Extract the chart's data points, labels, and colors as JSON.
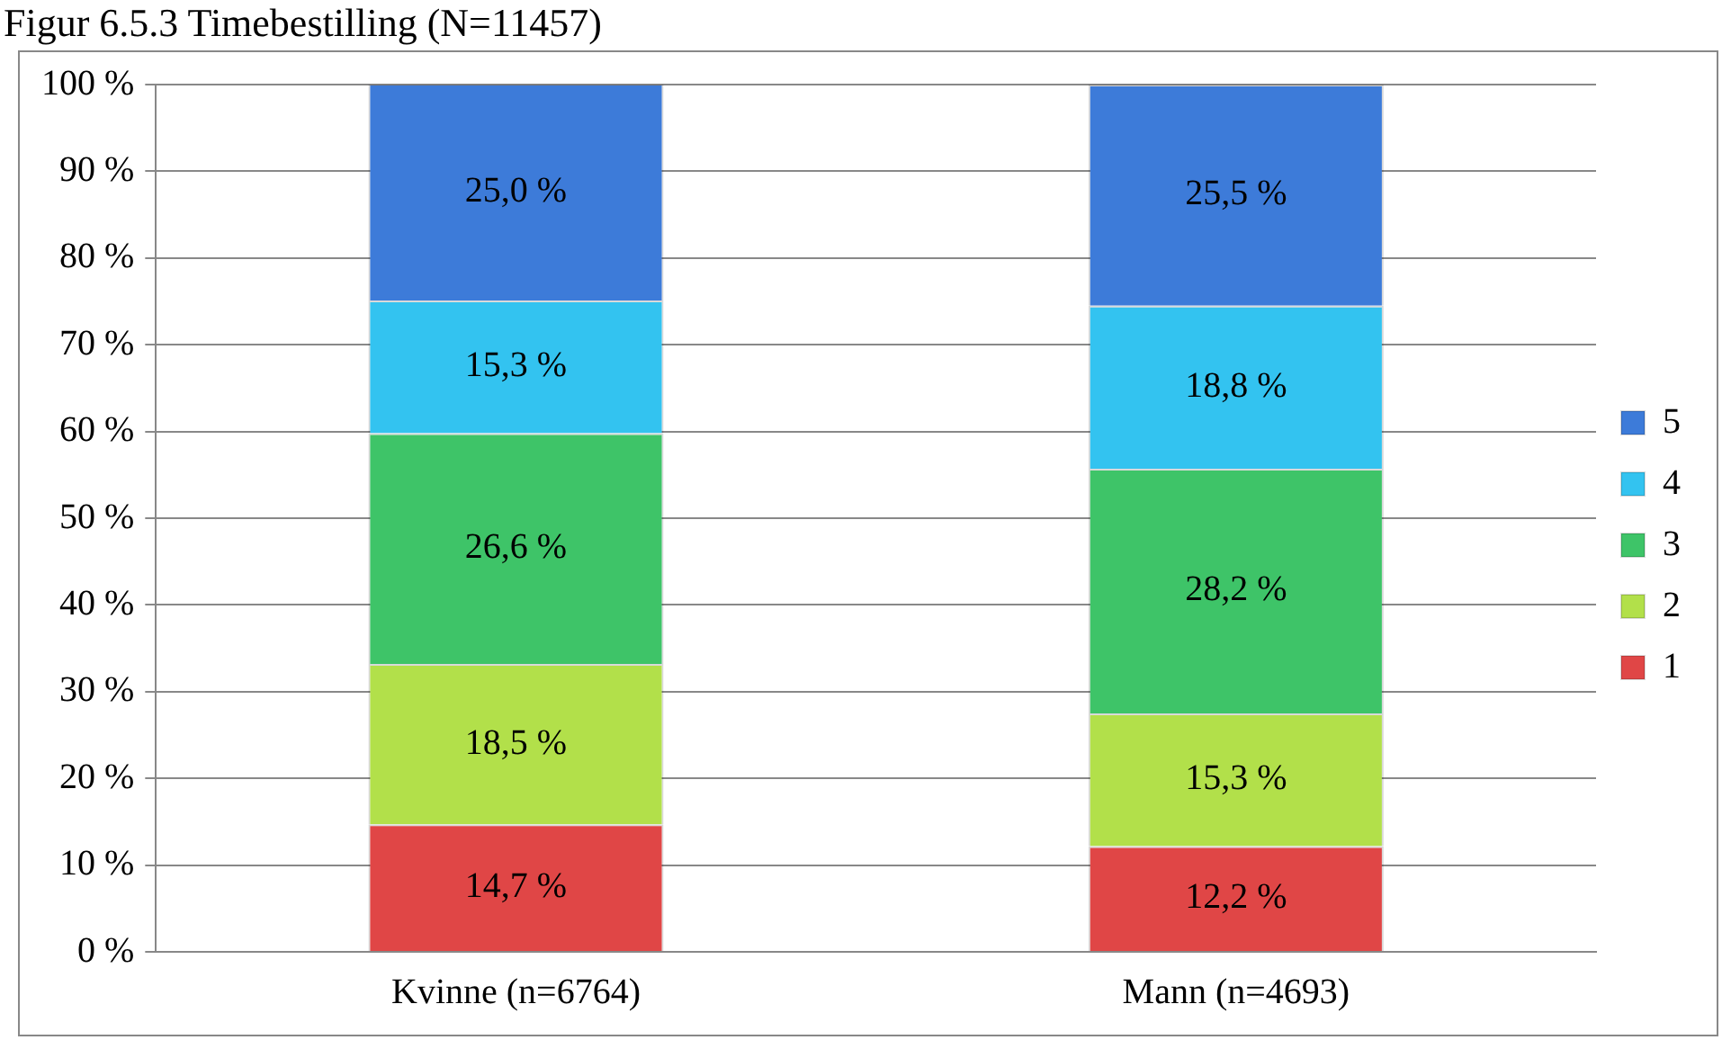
{
  "chart_data": {
    "type": "bar",
    "title": "Figur 6.5.3 Timebestilling (N=11457)",
    "stacked": true,
    "categories": [
      "Kvinne (n=6764)",
      "Mann (n=4693)"
    ],
    "series": [
      {
        "name": "1",
        "color": "#e04646",
        "values": [
          14.7,
          12.2
        ],
        "value_labels": [
          "14,7 %",
          "12,2 %"
        ]
      },
      {
        "name": "2",
        "color": "#b2e04a",
        "values": [
          18.5,
          15.3
        ],
        "value_labels": [
          "18,5 %",
          "15,3 %"
        ]
      },
      {
        "name": "3",
        "color": "#3ec468",
        "values": [
          26.6,
          28.2
        ],
        "value_labels": [
          "26,6 %",
          "28,2 %"
        ]
      },
      {
        "name": "4",
        "color": "#33c3f0",
        "values": [
          15.3,
          18.8
        ],
        "value_labels": [
          "15,3 %",
          "18,8 %"
        ]
      },
      {
        "name": "5",
        "color": "#3d7bd9",
        "values": [
          25.0,
          25.5
        ],
        "value_labels": [
          "25,0 %",
          "25,5 %"
        ]
      }
    ],
    "ylim": [
      0,
      100
    ],
    "yticks": [
      {
        "value": 0,
        "label": "0 %"
      },
      {
        "value": 10,
        "label": "10 %"
      },
      {
        "value": 20,
        "label": "20 %"
      },
      {
        "value": 30,
        "label": "30 %"
      },
      {
        "value": 40,
        "label": "40 %"
      },
      {
        "value": 50,
        "label": "50 %"
      },
      {
        "value": 60,
        "label": "60 %"
      },
      {
        "value": 70,
        "label": "70 %"
      },
      {
        "value": 80,
        "label": "80 %"
      },
      {
        "value": 90,
        "label": "90 %"
      },
      {
        "value": 100,
        "label": "100 %"
      }
    ],
    "grid": "y",
    "legend": "right"
  }
}
